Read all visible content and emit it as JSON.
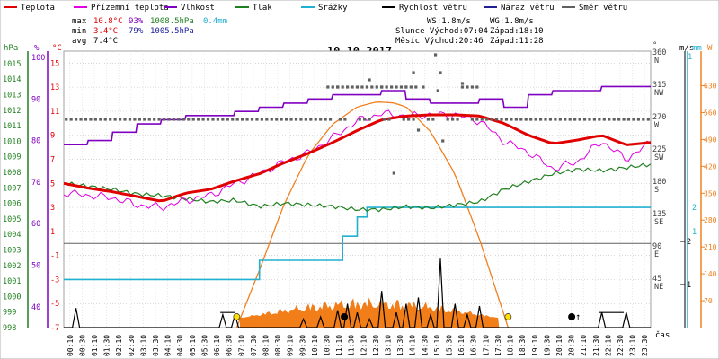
{
  "chart_data": {
    "type": "line",
    "title": "10.10.2017",
    "legend": [
      {
        "name": "Teplota",
        "color": "#e00000"
      },
      {
        "name": "Přízemní teplota",
        "color": "#e000e0"
      },
      {
        "name": "Vlhkost",
        "color": "#8000c0"
      },
      {
        "name": "Tlak",
        "color": "#208020"
      },
      {
        "name": "Srážky",
        "color": "#20b0d0"
      },
      {
        "name": "Rychlost větru",
        "color": "#000000"
      },
      {
        "name": "Náraz větru",
        "color": "#202090"
      },
      {
        "name": "Směr větru",
        "color": "#606060"
      }
    ],
    "stats": {
      "max": {
        "label": "max",
        "temp": "10.8°C",
        "hum": "93%",
        "press": "1008.5hPa",
        "rain": "0.4mm"
      },
      "min": {
        "label": "min",
        "temp": "3.4°C",
        "hum": "79%",
        "press": "1005.5hPa"
      },
      "avg": {
        "label": "avg",
        "temp": "7.4°C"
      }
    },
    "info": {
      "ws": "WS:1.8m/s",
      "wg": "WG:1.8m/s",
      "sun": "Slunce Východ:07:04",
      "sunset": "Západ:18:10",
      "moon": "Měsíc Východ:20:46",
      "moonset": "Západ:11:28"
    },
    "axes": {
      "hpa_title": "hPa",
      "hpa_ticks": [
        "998",
        "999",
        "1000",
        "1001",
        "1002",
        "1003",
        "1004",
        "1005",
        "1006",
        "1007",
        "1008",
        "1009",
        "1010",
        "1011",
        "1012",
        "1013",
        "1014",
        "1015"
      ],
      "pct_title": "%",
      "pct_ticks": [
        "40",
        "50",
        "60",
        "70",
        "80",
        "90",
        "100"
      ],
      "temp_title": "°C",
      "temp_ticks": [
        "-7",
        "-5",
        "-3",
        "-1",
        "1",
        "3",
        "5",
        "7",
        "9",
        "11",
        "13",
        "15"
      ],
      "temp_range": [
        -7,
        16
      ],
      "deg_title": "°",
      "dir_ticks": [
        {
          "deg": "360",
          "dir": "N"
        },
        {
          "deg": "315",
          "dir": "NW"
        },
        {
          "deg": "270",
          "dir": "W"
        },
        {
          "deg": "225",
          "dir": "SW"
        },
        {
          "deg": "180",
          "dir": "S"
        },
        {
          "deg": "135",
          "dir": "SE"
        },
        {
          "deg": "90",
          "dir": "E"
        },
        {
          "deg": "45",
          "dir": "NE"
        }
      ],
      "ms_title": "m/s",
      "ms_ticks": [
        "1",
        "2"
      ],
      "mm_title": "mm",
      "mm_ticks": [
        "-1",
        "1",
        "2"
      ],
      "w_title": "W",
      "w_ticks": [
        "70",
        "140",
        "210",
        "280",
        "350",
        "420",
        "490",
        "560",
        "630"
      ],
      "x_ticks": [
        "00:10",
        "00:30",
        "01:10",
        "01:30",
        "02:10",
        "02:30",
        "03:10",
        "03:30",
        "04:10",
        "04:30",
        "05:10",
        "05:30",
        "06:10",
        "06:30",
        "07:10",
        "07:30",
        "08:10",
        "08:30",
        "09:10",
        "09:30",
        "10:10",
        "10:30",
        "11:10",
        "11:30",
        "12:10",
        "12:30",
        "13:10",
        "13:30",
        "14:10",
        "14:30",
        "15:10",
        "15:30",
        "16:10",
        "16:30",
        "17:10",
        "17:30",
        "18:10",
        "18:30",
        "19:10",
        "19:30",
        "20:10",
        "20:30",
        "21:10",
        "21:30",
        "22:10",
        "22:30",
        "23:10",
        "23:30"
      ],
      "x_title": "čas"
    },
    "series": [
      {
        "name": "Teplota",
        "unit": "°C",
        "x_hours": [
          0,
          1,
          2,
          3,
          4,
          5,
          6,
          7,
          8,
          9,
          10,
          11,
          12,
          13,
          14,
          15,
          16,
          17,
          18,
          19,
          20,
          21,
          22,
          23,
          24
        ],
        "values": [
          5.0,
          4.6,
          4.3,
          3.9,
          3.5,
          4.2,
          4.5,
          5.2,
          5.8,
          6.7,
          7.5,
          8.4,
          9.4,
          10.3,
          10.6,
          10.7,
          10.7,
          10.6,
          10.0,
          9.0,
          8.3,
          8.6,
          9.0,
          8.2,
          8.4
        ]
      },
      {
        "name": "Přízemní teplota",
        "unit": "°C",
        "x_hours": [
          0,
          1,
          2,
          3,
          4,
          5,
          6,
          7,
          8,
          9,
          10,
          11,
          12,
          13,
          14,
          15,
          16,
          17,
          18,
          19,
          20,
          21,
          22,
          23,
          24
        ],
        "values": [
          4.2,
          4.0,
          3.8,
          3.2,
          3.0,
          3.6,
          4.0,
          5.0,
          5.8,
          6.8,
          7.5,
          8.8,
          10.2,
          10.8,
          10.6,
          10.7,
          10.7,
          10.2,
          8.5,
          7.6,
          6.2,
          6.8,
          8.5,
          7.0,
          8.4
        ]
      },
      {
        "name": "Vlhkost",
        "unit": "%",
        "x_hours": [
          0,
          1,
          2,
          3,
          4,
          5,
          6,
          7,
          8,
          9,
          10,
          11,
          12,
          13,
          14,
          15,
          16,
          17,
          18,
          19,
          20,
          21,
          22,
          23,
          24
        ],
        "values": [
          79,
          80,
          82,
          84,
          85,
          86,
          86,
          87,
          88,
          89,
          90,
          91,
          91,
          92,
          90,
          89,
          89,
          90,
          88,
          91,
          92,
          92,
          93,
          93,
          93
        ]
      },
      {
        "name": "Tlak",
        "unit": "hPa",
        "x_hours": [
          0,
          1,
          2,
          3,
          4,
          5,
          6,
          7,
          8,
          9,
          10,
          11,
          12,
          13,
          14,
          15,
          16,
          17,
          18,
          19,
          20,
          21,
          22,
          23,
          24
        ],
        "values": [
          1007.3,
          1007.1,
          1006.9,
          1006.6,
          1006.5,
          1006.3,
          1006.1,
          1006.2,
          1005.8,
          1006.0,
          1005.9,
          1005.8,
          1005.6,
          1005.6,
          1005.8,
          1005.7,
          1005.9,
          1006.1,
          1006.9,
          1007.4,
          1007.9,
          1008.2,
          1008.1,
          1008.3,
          1008.5
        ]
      },
      {
        "name": "Srážky",
        "unit": "mm",
        "x_hours": [
          0,
          7.6,
          8.0,
          11.0,
          11.4,
          12.0,
          12.4,
          24
        ],
        "values": [
          -1,
          -1,
          -0.2,
          -0.2,
          0.8,
          1.6,
          2.0,
          2.0
        ]
      },
      {
        "name": "Rychlost větru",
        "unit": "m/s",
        "gust_points": [
          [
            0.5,
            0.45
          ],
          [
            6.5,
            0.3
          ],
          [
            7.0,
            0.3
          ],
          [
            9.8,
            0.2
          ],
          [
            10.5,
            0.25
          ],
          [
            11.2,
            0.4
          ],
          [
            11.6,
            0.55
          ],
          [
            12.0,
            0.35
          ],
          [
            12.5,
            0.2
          ],
          [
            13.0,
            0.85
          ],
          [
            13.6,
            0.35
          ],
          [
            14.0,
            0.55
          ],
          [
            14.5,
            0.7
          ],
          [
            15.0,
            0.3
          ],
          [
            15.4,
            1.6
          ],
          [
            16.0,
            0.55
          ],
          [
            16.5,
            0.3
          ],
          [
            17.0,
            0.5
          ],
          [
            22.0,
            0.35
          ],
          [
            23.0,
            0.35
          ]
        ]
      },
      {
        "name": "Směr větru",
        "unit": "°",
        "points": [
          [
            0,
            270
          ],
          [
            2,
            270
          ],
          [
            4,
            270
          ],
          [
            6,
            270
          ],
          [
            8,
            270
          ],
          [
            10,
            270
          ],
          [
            11.2,
            315
          ],
          [
            12,
            270
          ],
          [
            12.5,
            325
          ],
          [
            13,
            315
          ],
          [
            13.5,
            270
          ],
          [
            14,
            315
          ],
          [
            14.3,
            335
          ],
          [
            14.7,
            315
          ],
          [
            15,
            270
          ],
          [
            15.3,
            310
          ],
          [
            15.8,
            270
          ],
          [
            16.5,
            270
          ],
          [
            17,
            270
          ],
          [
            18,
            270
          ],
          [
            20,
            270
          ],
          [
            22,
            270
          ],
          [
            24,
            270
          ],
          [
            13.5,
            195
          ],
          [
            14.5,
            255
          ],
          [
            15.2,
            360
          ],
          [
            15.4,
            335
          ],
          [
            15.5,
            240
          ],
          [
            16.3,
            320
          ],
          [
            13.5,
            270
          ]
        ]
      },
      {
        "name": "Sluneční záření",
        "unit": "W",
        "x_hours": [
          7.07,
          8,
          9,
          10,
          11,
          12,
          12.8,
          13.5,
          14,
          15,
          16,
          17,
          18.17
        ],
        "values": [
          0,
          150,
          320,
          450,
          530,
          575,
          588,
          585,
          575,
          510,
          400,
          230,
          0
        ]
      }
    ]
  }
}
